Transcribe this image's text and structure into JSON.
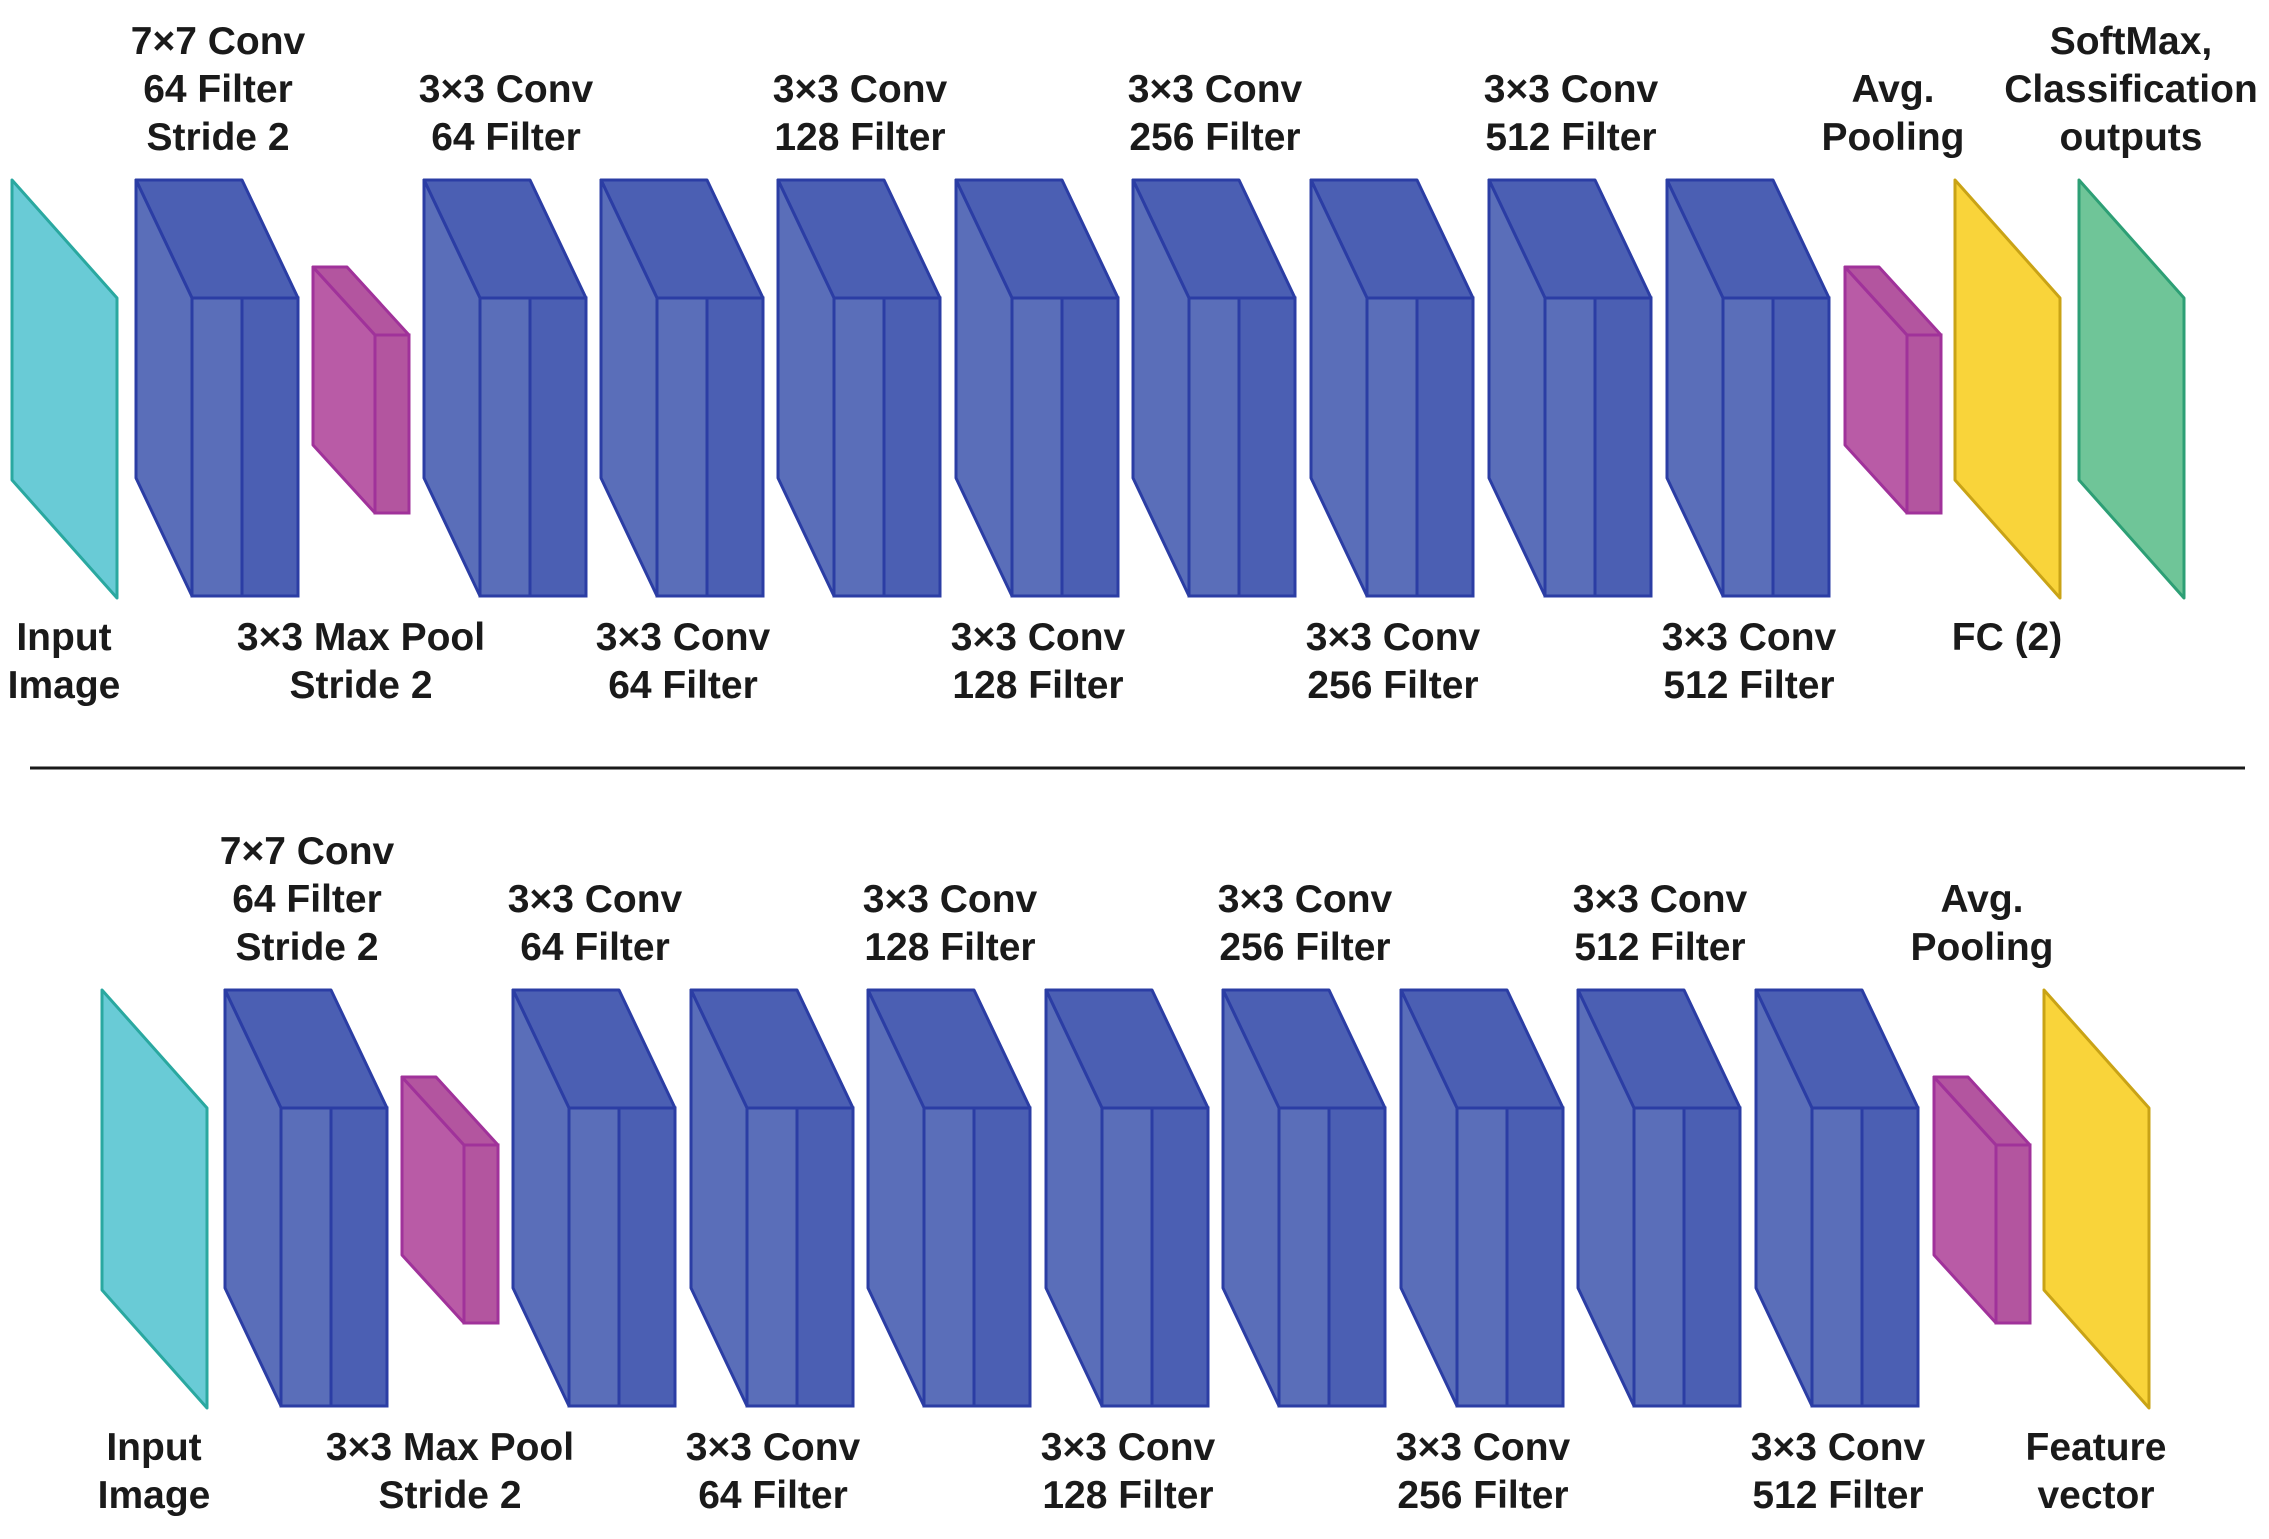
{
  "colors": {
    "input": "#69cbd6",
    "input_edge": "#2aa8a0",
    "conv_front": "#5a6eb9",
    "conv_side": "#4b5fb3",
    "conv_edge": "#2b3da4",
    "pool_front": "#b95ba6",
    "pool_side": "#b3559f",
    "pool_edge": "#a0329a",
    "fc": "#f9d43a",
    "fc_edge": "#c9a316",
    "softmax": "#6fc598",
    "softmax_edge": "#2d9f75",
    "text": "#1a1a1a",
    "divider": "#1a1a1a"
  },
  "top_network": {
    "blocks": [
      {
        "type": "input",
        "label_lines": [
          "Input",
          "Image"
        ],
        "label_pos": "below"
      },
      {
        "type": "conv",
        "label_lines": [
          "7×7 Conv",
          "64 Filter",
          "Stride 2"
        ],
        "label_pos": "above"
      },
      {
        "type": "pool",
        "label_lines": [
          "3×3 Max Pool",
          "Stride 2"
        ],
        "label_pos": "below"
      },
      {
        "type": "conv",
        "label_lines": [
          "3×3 Conv",
          "64 Filter"
        ],
        "label_pos": "above"
      },
      {
        "type": "conv",
        "label_lines": [
          "3×3 Conv",
          "64 Filter"
        ],
        "label_pos": "below"
      },
      {
        "type": "conv",
        "label_lines": [
          "3×3 Conv",
          "128 Filter"
        ],
        "label_pos": "above"
      },
      {
        "type": "conv",
        "label_lines": [
          "3×3 Conv",
          "128 Filter"
        ],
        "label_pos": "below"
      },
      {
        "type": "conv",
        "label_lines": [
          "3×3 Conv",
          "256 Filter"
        ],
        "label_pos": "above"
      },
      {
        "type": "conv",
        "label_lines": [
          "3×3 Conv",
          "256 Filter"
        ],
        "label_pos": "below"
      },
      {
        "type": "conv",
        "label_lines": [
          "3×3 Conv",
          "512 Filter"
        ],
        "label_pos": "above"
      },
      {
        "type": "conv",
        "label_lines": [
          "3×3 Conv",
          "512 Filter"
        ],
        "label_pos": "below"
      },
      {
        "type": "pool",
        "label_lines": [
          "Avg.",
          "Pooling"
        ],
        "label_pos": "above"
      },
      {
        "type": "fc",
        "label_lines": [
          "FC (2)"
        ],
        "label_pos": "below"
      },
      {
        "type": "softmax",
        "label_lines": [
          "SoftMax,",
          "Classification",
          "outputs"
        ],
        "label_pos": "above"
      }
    ]
  },
  "bottom_network": {
    "blocks": [
      {
        "type": "input",
        "label_lines": [
          "Input",
          "Image"
        ],
        "label_pos": "below"
      },
      {
        "type": "conv",
        "label_lines": [
          "7×7 Conv",
          "64 Filter",
          "Stride 2"
        ],
        "label_pos": "above"
      },
      {
        "type": "pool",
        "label_lines": [
          "3×3 Max Pool",
          "Stride 2"
        ],
        "label_pos": "below"
      },
      {
        "type": "conv",
        "label_lines": [
          "3×3 Conv",
          "64 Filter"
        ],
        "label_pos": "above"
      },
      {
        "type": "conv",
        "label_lines": [
          "3×3 Conv",
          "64 Filter"
        ],
        "label_pos": "below"
      },
      {
        "type": "conv",
        "label_lines": [
          "3×3 Conv",
          "128 Filter"
        ],
        "label_pos": "above"
      },
      {
        "type": "conv",
        "label_lines": [
          "3×3 Conv",
          "128 Filter"
        ],
        "label_pos": "below"
      },
      {
        "type": "conv",
        "label_lines": [
          "3×3 Conv",
          "256 Filter"
        ],
        "label_pos": "above"
      },
      {
        "type": "conv",
        "label_lines": [
          "3×3 Conv",
          "256 Filter"
        ],
        "label_pos": "below"
      },
      {
        "type": "conv",
        "label_lines": [
          "3×3 Conv",
          "512 Filter"
        ],
        "label_pos": "above"
      },
      {
        "type": "conv",
        "label_lines": [
          "3×3 Conv",
          "512 Filter"
        ],
        "label_pos": "below"
      },
      {
        "type": "pool",
        "label_lines": [
          "Avg.",
          "Pooling"
        ],
        "label_pos": "above"
      },
      {
        "type": "fc",
        "label_lines": [
          "Feature",
          "vector"
        ],
        "label_pos": "below"
      }
    ]
  }
}
